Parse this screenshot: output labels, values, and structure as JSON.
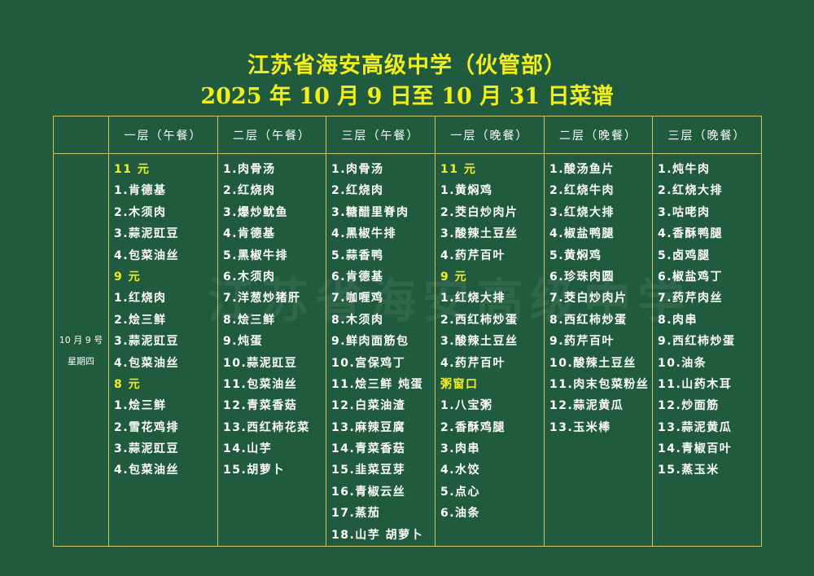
{
  "title": {
    "line1": "江苏省海安高级中学（伙管部）",
    "line2": "2025 年 10 月 9 日至 10 月 31 日菜谱"
  },
  "watermark": "江苏省海安高级中学",
  "colors": {
    "background": "#215b3f",
    "title": "#f2ee1c",
    "border": "#c8c46a",
    "text": "#ffffff"
  },
  "headers": [
    "",
    "一层（午餐）",
    "二层（午餐）",
    "三层（午餐）",
    "一层（晚餐）",
    "二层（晚餐）",
    "三层（晚餐）"
  ],
  "day": {
    "date": "10 月 9 号",
    "weekday": "星期四"
  },
  "columns": [
    [
      {
        "t": "11 元",
        "p": true
      },
      {
        "t": "1.肯德基"
      },
      {
        "t": "2.木须肉"
      },
      {
        "t": "3.蒜泥豇豆"
      },
      {
        "t": "4.包菜油丝"
      },
      {
        "t": "9 元",
        "p": true
      },
      {
        "t": "1.红烧肉"
      },
      {
        "t": "2.烩三鲜"
      },
      {
        "t": "3.蒜泥豇豆"
      },
      {
        "t": "4.包菜油丝"
      },
      {
        "t": "8 元",
        "p": true
      },
      {
        "t": "1.烩三鲜"
      },
      {
        "t": "2.雪花鸡排"
      },
      {
        "t": "3.蒜泥豇豆"
      },
      {
        "t": "4.包菜油丝"
      }
    ],
    [
      {
        "t": "1.肉骨汤"
      },
      {
        "t": "2.红烧肉"
      },
      {
        "t": "3.爆炒鱿鱼"
      },
      {
        "t": "4.肯德基"
      },
      {
        "t": "5.黑椒牛排"
      },
      {
        "t": "6.木须肉"
      },
      {
        "t": "7.洋葱炒猪肝"
      },
      {
        "t": "8.烩三鲜"
      },
      {
        "t": "9.炖蛋"
      },
      {
        "t": "10.蒜泥豇豆"
      },
      {
        "t": "11.包菜油丝"
      },
      {
        "t": "12.青菜香菇"
      },
      {
        "t": "13.西红柿花菜"
      },
      {
        "t": "14.山芋"
      },
      {
        "t": "15.胡萝卜"
      }
    ],
    [
      {
        "t": "1.肉骨汤"
      },
      {
        "t": "2.红烧肉"
      },
      {
        "t": "3.糖醋里脊肉"
      },
      {
        "t": "4.黑椒牛排"
      },
      {
        "t": "5.蒜香鸭"
      },
      {
        "t": "6.肯德基"
      },
      {
        "t": "7.咖喱鸡"
      },
      {
        "t": "8.木须肉"
      },
      {
        "t": "9.鲜肉面筋包"
      },
      {
        "t": "10.宫保鸡丁"
      },
      {
        "t": "11.烩三鲜  炖蛋"
      },
      {
        "t": "12.白菜油渣"
      },
      {
        "t": "13.麻辣豆腐"
      },
      {
        "t": "14.青菜香菇"
      },
      {
        "t": "15.韭菜豆芽"
      },
      {
        "t": "16.青椒云丝"
      },
      {
        "t": "17.蒸茄"
      },
      {
        "t": "18.山芋  胡萝卜"
      }
    ],
    [
      {
        "t": "11 元",
        "p": true
      },
      {
        "t": "1.黄焖鸡"
      },
      {
        "t": "2.茭白炒肉片"
      },
      {
        "t": "3.酸辣土豆丝"
      },
      {
        "t": "4.药芹百叶"
      },
      {
        "t": "9 元",
        "p": true
      },
      {
        "t": "1.红烧大排"
      },
      {
        "t": "2.西红柿炒蛋"
      },
      {
        "t": "3.酸辣土豆丝"
      },
      {
        "t": "4.药芹百叶"
      },
      {
        "t": "粥窗口",
        "p": true
      },
      {
        "t": "1.八宝粥"
      },
      {
        "t": "2.香酥鸡腿"
      },
      {
        "t": "3.肉串"
      },
      {
        "t": "4.水饺"
      },
      {
        "t": "5.点心"
      },
      {
        "t": "6.油条"
      }
    ],
    [
      {
        "t": "1.酸汤鱼片"
      },
      {
        "t": "2.红烧牛肉"
      },
      {
        "t": "3.红烧大排"
      },
      {
        "t": "4.椒盐鸭腿"
      },
      {
        "t": "5.黄焖鸡"
      },
      {
        "t": "6.珍珠肉圆"
      },
      {
        "t": "7.茭白炒肉片"
      },
      {
        "t": "8.西红柿炒蛋"
      },
      {
        "t": "9.药芹百叶"
      },
      {
        "t": "10.酸辣土豆丝"
      },
      {
        "t": "11.肉末包菜粉丝"
      },
      {
        "t": "12.蒜泥黄瓜"
      },
      {
        "t": "13.玉米棒"
      }
    ],
    [
      {
        "t": "1.炖牛肉"
      },
      {
        "t": "2.红烧大排"
      },
      {
        "t": "3.咕咾肉"
      },
      {
        "t": "4.香酥鸭腿"
      },
      {
        "t": "5.卤鸡腿"
      },
      {
        "t": "6.椒盐鸡丁"
      },
      {
        "t": "7.药芹肉丝"
      },
      {
        "t": "8.肉串"
      },
      {
        "t": "9.西红柿炒蛋"
      },
      {
        "t": "10.油条"
      },
      {
        "t": "11.山药木耳"
      },
      {
        "t": "12.炒面筋"
      },
      {
        "t": "13.蒜泥黄瓜"
      },
      {
        "t": "14.青椒百叶"
      },
      {
        "t": "15.蒸玉米"
      }
    ]
  ]
}
